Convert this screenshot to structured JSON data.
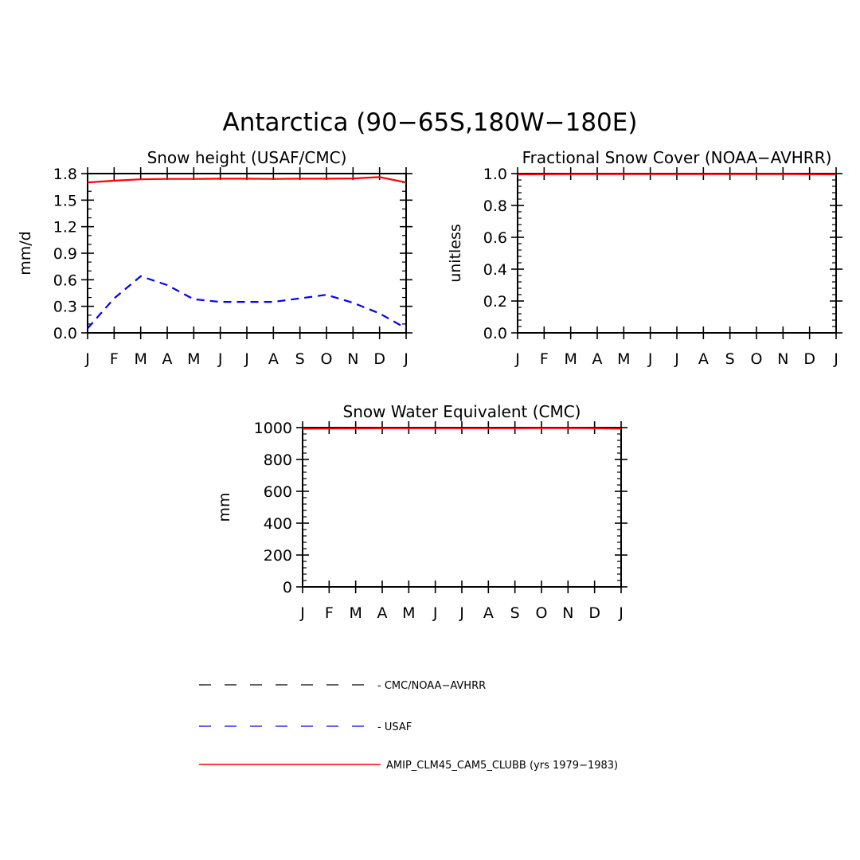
{
  "figure": {
    "title": "Antarctica (90−65S,180W−180E)"
  },
  "chart_data": [
    {
      "type": "line",
      "title": "Snow height (USAF/CMC)",
      "xlabel": "",
      "ylabel": "mm/d",
      "categories": [
        "J",
        "F",
        "M",
        "A",
        "M",
        "J",
        "J",
        "A",
        "S",
        "O",
        "N",
        "D",
        "J"
      ],
      "ylim": [
        0,
        1.8
      ],
      "yticks": [
        0,
        0.3,
        0.6,
        0.9,
        1.2,
        1.5,
        1.8
      ],
      "ytick_labels": [
        "0.0",
        "0.3",
        "0.6",
        "0.9",
        "1.2",
        "1.5",
        "1.8"
      ],
      "grid": false,
      "series": [
        {
          "name": "CMC/NOAA−AVHRR",
          "color": "#000000",
          "style": "dashed",
          "values": [
            0,
            0,
            0,
            0,
            0,
            0,
            0,
            0,
            0,
            0,
            0,
            0,
            0
          ]
        },
        {
          "name": "USAF",
          "color": "#0000ff",
          "style": "dashed",
          "values": [
            0.05,
            0.39,
            0.64,
            0.54,
            0.38,
            0.35,
            0.35,
            0.35,
            0.39,
            0.43,
            0.34,
            0.22,
            0.05
          ]
        },
        {
          "name": "AMIP_CLM45_CAM5_CLUBB (yrs 1979−1983)",
          "color": "#ff0000",
          "style": "solid",
          "values": [
            1.7,
            1.72,
            1.735,
            1.74,
            1.74,
            1.742,
            1.742,
            1.74,
            1.742,
            1.742,
            1.745,
            1.76,
            1.7
          ]
        }
      ]
    },
    {
      "type": "line",
      "title": "Fractional Snow Cover (NOAA−AVHRR)",
      "xlabel": "",
      "ylabel": "unitless",
      "categories": [
        "J",
        "F",
        "M",
        "A",
        "M",
        "J",
        "J",
        "A",
        "S",
        "O",
        "N",
        "D",
        "J"
      ],
      "ylim": [
        0,
        1.0
      ],
      "yticks": [
        0,
        0.2,
        0.4,
        0.6,
        0.8,
        1.0
      ],
      "ytick_labels": [
        "0.0",
        "0.2",
        "0.4",
        "0.6",
        "0.8",
        "1.0"
      ],
      "grid": false,
      "series": [
        {
          "name": "CMC/NOAA−AVHRR",
          "color": "#000000",
          "style": "dashed",
          "values": [
            0,
            0,
            0,
            0,
            0,
            0,
            0,
            0,
            0,
            0,
            0,
            0,
            0
          ]
        },
        {
          "name": "AMIP_CLM45_CAM5_CLUBB (yrs 1979−1983)",
          "color": "#ff0000",
          "style": "solid",
          "values": [
            0.995,
            0.996,
            0.997,
            0.997,
            0.997,
            0.997,
            0.997,
            0.997,
            0.997,
            0.997,
            0.997,
            0.996,
            0.995
          ]
        }
      ]
    },
    {
      "type": "line",
      "title": "Snow Water Equivalent (CMC)",
      "xlabel": "",
      "ylabel": "mm",
      "categories": [
        "J",
        "F",
        "M",
        "A",
        "M",
        "J",
        "J",
        "A",
        "S",
        "O",
        "N",
        "D",
        "J"
      ],
      "ylim": [
        0,
        1000
      ],
      "yticks": [
        0,
        200,
        400,
        600,
        800,
        1000
      ],
      "ytick_labels": [
        "0",
        "200",
        "400",
        "600",
        "800",
        "1000"
      ],
      "grid": false,
      "series": [
        {
          "name": "CMC/NOAA−AVHRR",
          "color": "#000000",
          "style": "dashed",
          "values": [
            0,
            0,
            0,
            0,
            0,
            0,
            0,
            0,
            0,
            0,
            0,
            0,
            0
          ]
        },
        {
          "name": "AMIP_CLM45_CAM5_CLUBB (yrs 1979−1983)",
          "color": "#ff0000",
          "style": "solid",
          "values": [
            993,
            994,
            995,
            996,
            996,
            996,
            996,
            996,
            996,
            997,
            997,
            996,
            993
          ]
        }
      ]
    }
  ],
  "legend": {
    "placement": "bottom",
    "items": [
      {
        "label": "- CMC/NOAA−AVHRR",
        "color": "#000000",
        "style": "dashed"
      },
      {
        "label": "- USAF",
        "color": "#0000ff",
        "style": "dashed"
      },
      {
        "label": "AMIP_CLM45_CAM5_CLUBB (yrs 1979−1983)",
        "color": "#ff0000",
        "style": "solid"
      }
    ]
  }
}
